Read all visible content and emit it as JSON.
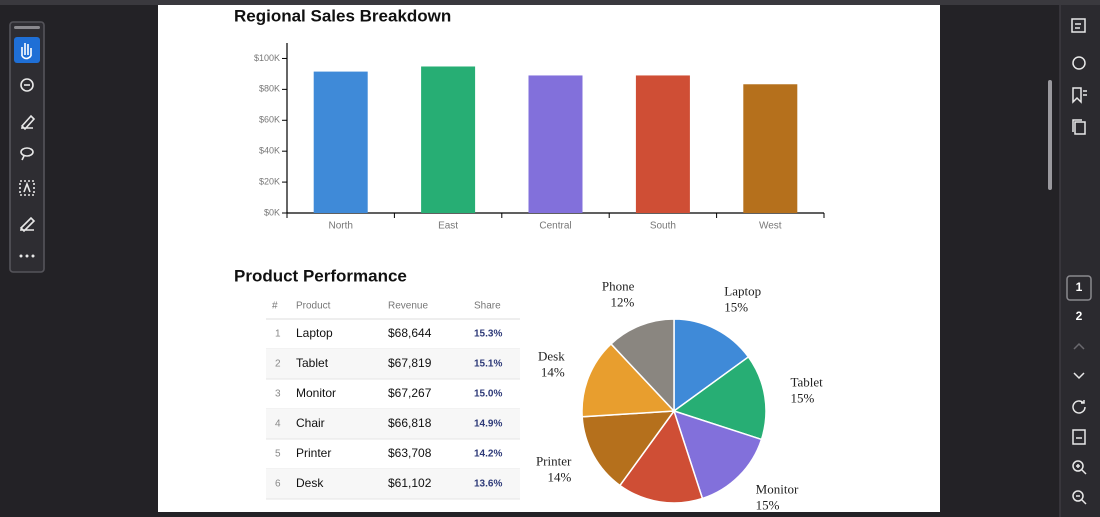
{
  "viewer": {
    "page_numbers": [
      "1",
      "2"
    ]
  },
  "chart_data": [
    {
      "type": "bar",
      "title": "Regional Sales Breakdown",
      "categories": [
        "North",
        "East",
        "Central",
        "South",
        "West"
      ],
      "values": [
        91500,
        94800,
        89000,
        89000,
        83300
      ],
      "colors": [
        "#3f8ad8",
        "#27ae74",
        "#8270db",
        "#cf4e35",
        "#b5701c"
      ],
      "ylim": [
        0,
        110000
      ],
      "yticks": [
        {
          "value": 0,
          "label": "$0K"
        },
        {
          "value": 20000,
          "label": "$20K"
        },
        {
          "value": 40000,
          "label": "$40K"
        },
        {
          "value": 60000,
          "label": "$60K"
        },
        {
          "value": 80000,
          "label": "$80K"
        },
        {
          "value": 100000,
          "label": "$100K"
        }
      ]
    },
    {
      "type": "pie",
      "categories": [
        "Laptop",
        "Tablet",
        "Monitor",
        null,
        "Printer",
        "Desk",
        "Phone"
      ],
      "values": [
        15,
        15,
        15,
        15,
        14,
        14,
        12
      ],
      "value_labels": [
        "15%",
        "15%",
        "15%",
        null,
        "14%",
        "14%",
        "12%"
      ],
      "colors": [
        "#3f8ad8",
        "#27ae74",
        "#8270db",
        "#cf4e35",
        "#b5701c",
        "#e89e2e",
        "#8a8680"
      ]
    }
  ],
  "table": {
    "title": "Product Performance",
    "columns": [
      "#",
      "Product",
      "Revenue",
      "Share"
    ],
    "rows": [
      [
        "1",
        "Laptop",
        "$68,644",
        "15.3%"
      ],
      [
        "2",
        "Tablet",
        "$67,819",
        "15.1%"
      ],
      [
        "3",
        "Monitor",
        "$67,267",
        "15.0%"
      ],
      [
        "4",
        "Chair",
        "$66,818",
        "14.9%"
      ],
      [
        "5",
        "Printer",
        "$63,708",
        "14.2%"
      ],
      [
        "6",
        "Desk",
        "$61,102",
        "13.6%"
      ]
    ]
  }
}
